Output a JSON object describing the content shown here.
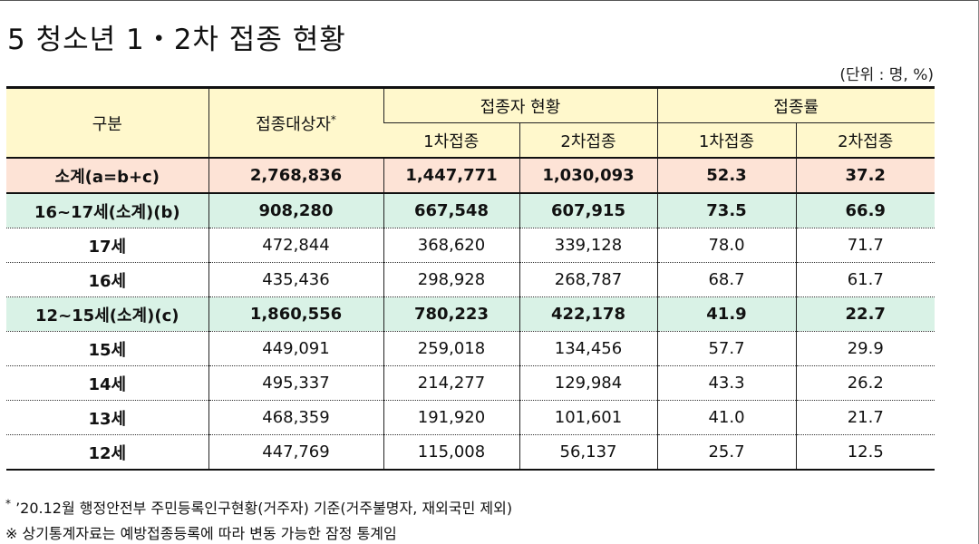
{
  "title": "5  청소년 1・2차 접종 현황",
  "unit": "(단위 : 명, %)",
  "table": {
    "header": {
      "col_label": "구분",
      "target": "접종대상자",
      "target_mark": "*",
      "status_group": "접종자 현황",
      "rate_group": "접종률",
      "dose1": "1차접종",
      "dose2": "2차접종",
      "rate1": "1차접종",
      "rate2": "2차접종"
    },
    "rows": [
      {
        "label": "소계(a=b+c)",
        "target": "2,768,836",
        "d1": "1,447,771",
        "d2": "1,030,093",
        "r1": "52.3",
        "r2": "37.2"
      },
      {
        "label": "16~17세(소계)(b)",
        "target": "908,280",
        "d1": "667,548",
        "d2": "607,915",
        "r1": "73.5",
        "r2": "66.9"
      },
      {
        "label": "17세",
        "target": "472,844",
        "d1": "368,620",
        "d2": "339,128",
        "r1": "78.0",
        "r2": "71.7"
      },
      {
        "label": "16세",
        "target": "435,436",
        "d1": "298,928",
        "d2": "268,787",
        "r1": "68.7",
        "r2": "61.7"
      },
      {
        "label": "12~15세(소계)(c)",
        "target": "1,860,556",
        "d1": "780,223",
        "d2": "422,178",
        "r1": "41.9",
        "r2": "22.7"
      },
      {
        "label": "15세",
        "target": "449,091",
        "d1": "259,018",
        "d2": "134,456",
        "r1": "57.7",
        "r2": "29.9"
      },
      {
        "label": "14세",
        "target": "495,337",
        "d1": "214,277",
        "d2": "129,984",
        "r1": "43.3",
        "r2": "26.2"
      },
      {
        "label": "13세",
        "target": "468,359",
        "d1": "191,920",
        "d2": "101,601",
        "r1": "41.0",
        "r2": "21.7"
      },
      {
        "label": "12세",
        "target": "447,769",
        "d1": "115,008",
        "d2": "56,137",
        "r1": "25.7",
        "r2": "12.5"
      }
    ]
  },
  "notes": {
    "note1_mark": "*",
    "note1": " ’20.12월 행정안전부 주민등록인구현황(거주자) 기준(거주불명자, 재외국민 제외)",
    "note2": "※ 상기통계자료는 예방접종등록에 따라 변동 가능한 잠정 통계임"
  },
  "colors": {
    "header_bg": "#fff8cc",
    "total_bg": "#fde3d6",
    "subtotal_bg": "#d9f2e6"
  }
}
